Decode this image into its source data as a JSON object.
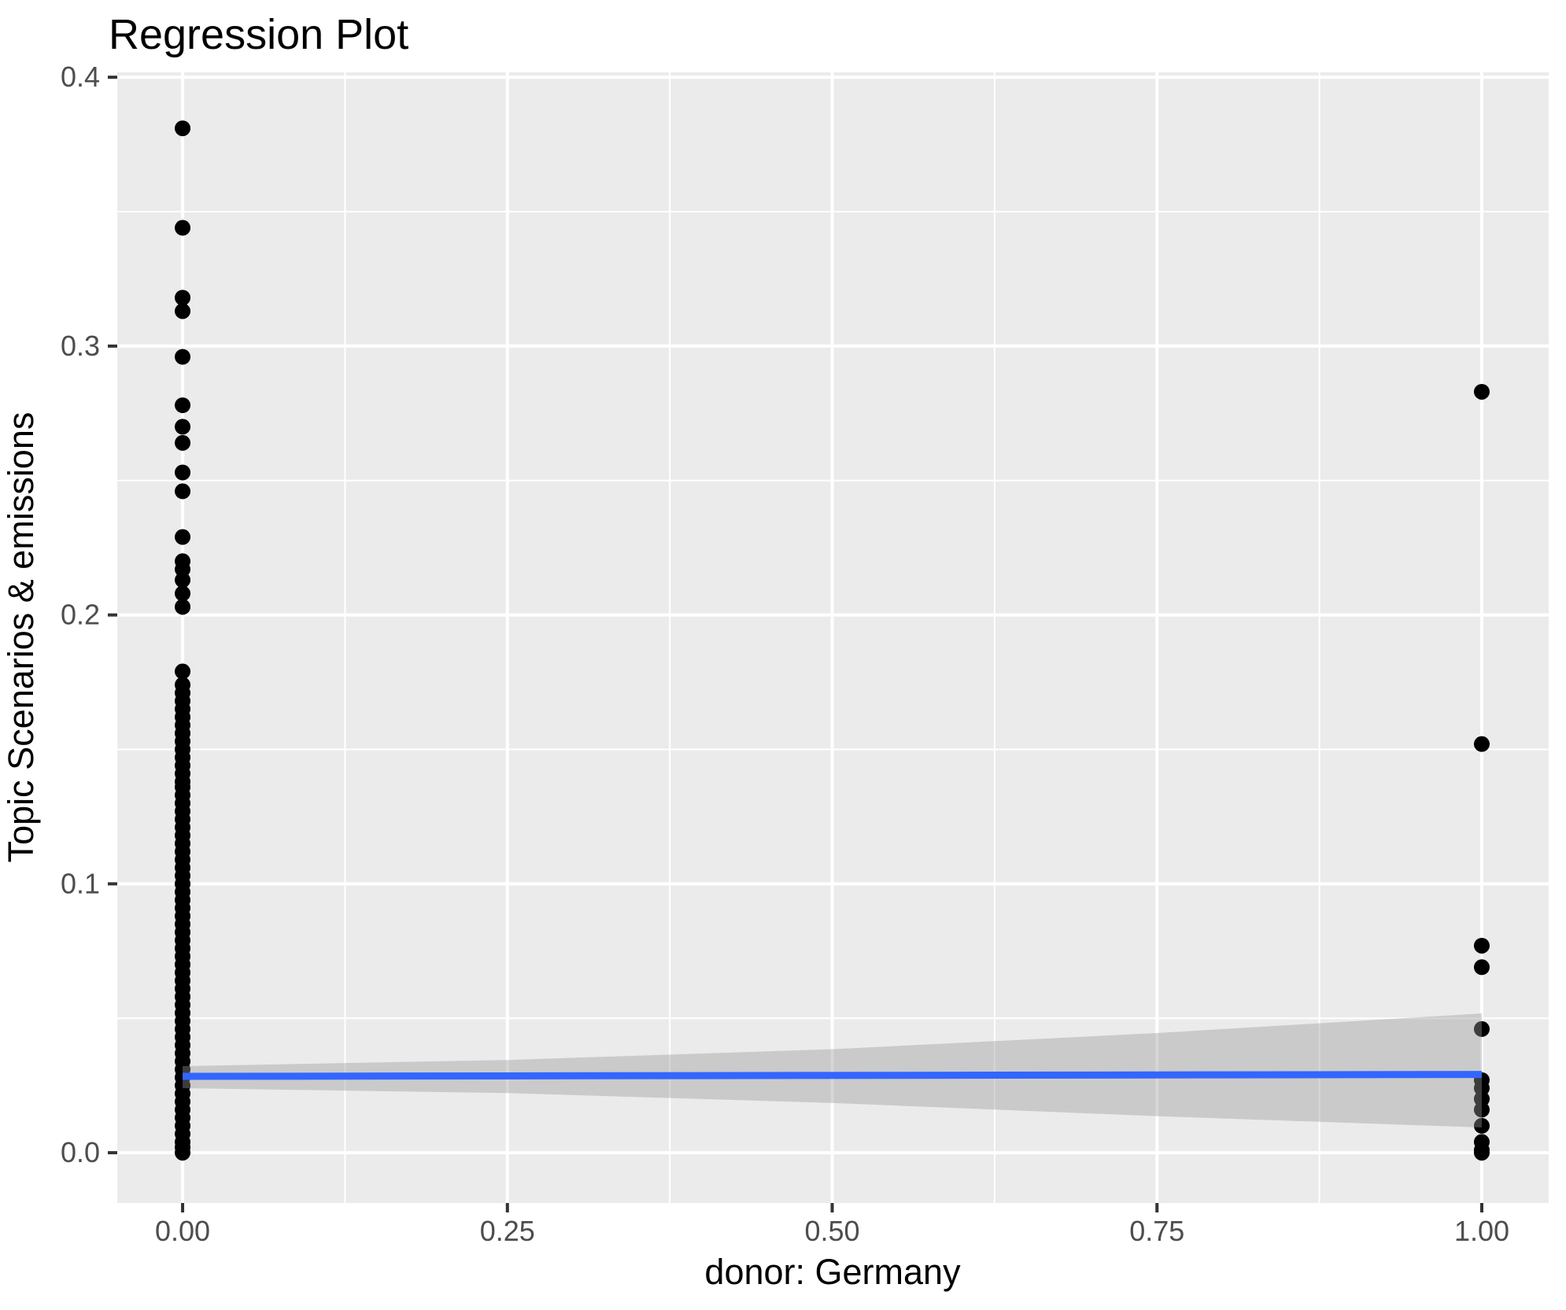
{
  "chart_data": {
    "type": "scatter",
    "title": "Regression Plot",
    "xlabel": "donor: Germany",
    "ylabel": "Topic Scenarios & emissions",
    "legend": "none",
    "grid": "on",
    "panel_background": "#EBEBEB",
    "gridline_color": "#FFFFFF",
    "point_color": "#000000",
    "tick_label_color": "#4D4D4D",
    "xlim": [
      -0.0503,
      1.0515
    ],
    "ylim": [
      -0.0187,
      0.4018
    ],
    "x_ticks": {
      "values": [
        0,
        0.25,
        0.5,
        0.75,
        1.0
      ],
      "labels": [
        "0.00",
        "0.25",
        "0.50",
        "0.75",
        "1.00"
      ]
    },
    "y_ticks": {
      "values": [
        0,
        0.1,
        0.2,
        0.3,
        0.4
      ],
      "labels": [
        "0.0",
        "0.1",
        "0.2",
        "0.3",
        "0.4"
      ]
    },
    "series": [
      {
        "name": "donor = 0",
        "x": 0,
        "y": [
          0.381,
          0.344,
          0.318,
          0.313,
          0.296,
          0.278,
          0.27,
          0.264,
          0.253,
          0.246,
          0.229,
          0.22,
          0.217,
          0.213,
          0.208,
          0.203,
          0.179,
          0.174,
          0.171,
          0.168,
          0.165,
          0.162,
          0.159,
          0.156,
          0.153,
          0.15,
          0.147,
          0.144,
          0.141,
          0.138,
          0.136,
          0.133,
          0.13,
          0.127,
          0.124,
          0.121,
          0.118,
          0.115,
          0.112,
          0.109,
          0.106,
          0.103,
          0.1,
          0.097,
          0.094,
          0.091,
          0.088,
          0.085,
          0.082,
          0.079,
          0.076,
          0.073,
          0.07,
          0.067,
          0.064,
          0.061,
          0.058,
          0.055,
          0.052,
          0.049,
          0.046,
          0.043,
          0.04,
          0.037,
          0.034,
          0.031,
          0.028,
          0.025,
          0.022,
          0.019,
          0.016,
          0.013,
          0.01,
          0.007,
          0.004,
          0.002,
          0.0
        ]
      },
      {
        "name": "donor = 1",
        "x": 1,
        "y": [
          0.283,
          0.152,
          0.077,
          0.069,
          0.046,
          0.027,
          0.024,
          0.02,
          0.016,
          0.01,
          0.004,
          0.001,
          0.0
        ]
      }
    ],
    "regression_line": {
      "color": "#3366FF",
      "x": [
        0,
        1
      ],
      "y": [
        0.0284,
        0.0291
      ]
    },
    "confidence_band": {
      "color": "#999999",
      "opacity": 0.4,
      "x": [
        0,
        0.25,
        0.5,
        0.75,
        1.0
      ],
      "upper": [
        0.0322,
        0.0345,
        0.0385,
        0.0445,
        0.0518
      ],
      "lower": [
        0.024,
        0.0222,
        0.0185,
        0.0136,
        0.0094
      ]
    }
  }
}
